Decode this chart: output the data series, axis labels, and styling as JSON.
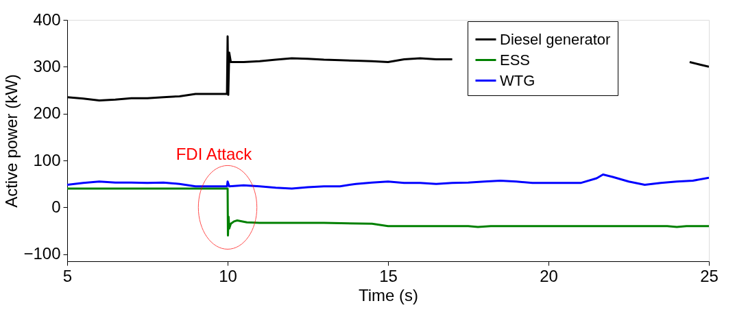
{
  "chart_data": {
    "type": "line",
    "xlabel": "Time (s)",
    "ylabel": "Active power (kW)",
    "xlim": [
      5,
      25
    ],
    "xticks": [
      5,
      10,
      15,
      20,
      25
    ],
    "ylim": [
      -115,
      400
    ],
    "yticks": [
      -100,
      0,
      100,
      200,
      300,
      400
    ],
    "grid": false,
    "legend": "top right",
    "line_style": "solid",
    "marker": "none",
    "annotations": [
      {
        "text": "FDI Attack",
        "x": 10,
        "y": 0
      }
    ],
    "series": [
      {
        "name": "Diesel generator",
        "color": "#000000",
        "x": [
          5,
          5.5,
          6,
          6.5,
          7,
          7.5,
          8,
          8.5,
          9,
          9.5,
          9.98,
          10.0,
          10.02,
          10.05,
          10.1,
          10.5,
          11,
          11.5,
          12,
          12.5,
          13,
          13.5,
          14,
          14.5,
          15,
          15.5,
          16,
          16.5,
          17,
          17.2,
          24.4,
          24.7,
          25
        ],
        "values": [
          235,
          232,
          228,
          230,
          233,
          233,
          235,
          237,
          242,
          242,
          242,
          365,
          240,
          330,
          310,
          310,
          312,
          315,
          318,
          317,
          315,
          314,
          313,
          312,
          310,
          316,
          318,
          316,
          316,
          null,
          310,
          305,
          300
        ]
      },
      {
        "name": "ESS",
        "color": "#008000",
        "x": [
          5,
          7,
          9,
          9.98,
          10.0,
          10.01,
          10.03,
          10.05,
          10.1,
          10.2,
          10.3,
          10.6,
          11,
          12,
          13,
          14.5,
          15,
          16,
          17.5,
          17.8,
          18.2,
          19,
          20,
          21,
          22,
          23,
          23.7,
          24,
          24.3,
          25
        ],
        "values": [
          40,
          40,
          40,
          40,
          40,
          -60,
          -20,
          -45,
          -35,
          -30,
          -28,
          -32,
          -33,
          -33,
          -33,
          -35,
          -40,
          -40,
          -40,
          -42,
          -40,
          -40,
          -40,
          -40,
          -40,
          -40,
          -40,
          -42,
          -40,
          -40
        ]
      },
      {
        "name": "WTG",
        "color": "#0000ff",
        "x": [
          5,
          5.5,
          6,
          6.5,
          7,
          7.5,
          8,
          8.5,
          9,
          9.5,
          9.98,
          10.0,
          10.05,
          10.5,
          11,
          11.5,
          12,
          12.5,
          13,
          13.5,
          14,
          14.5,
          15,
          15.5,
          16,
          16.5,
          17,
          17.5,
          18,
          18.5,
          19,
          19.5,
          20,
          20.5,
          21,
          21.5,
          21.7,
          22,
          22.5,
          23,
          23.5,
          24,
          24.5,
          25
        ],
        "values": [
          48,
          52,
          55,
          53,
          53,
          52,
          53,
          50,
          45,
          45,
          45,
          55,
          45,
          47,
          45,
          42,
          40,
          43,
          45,
          45,
          50,
          53,
          55,
          52,
          52,
          50,
          52,
          53,
          55,
          57,
          55,
          52,
          52,
          52,
          52,
          62,
          70,
          65,
          55,
          48,
          52,
          55,
          57,
          63
        ]
      }
    ]
  }
}
